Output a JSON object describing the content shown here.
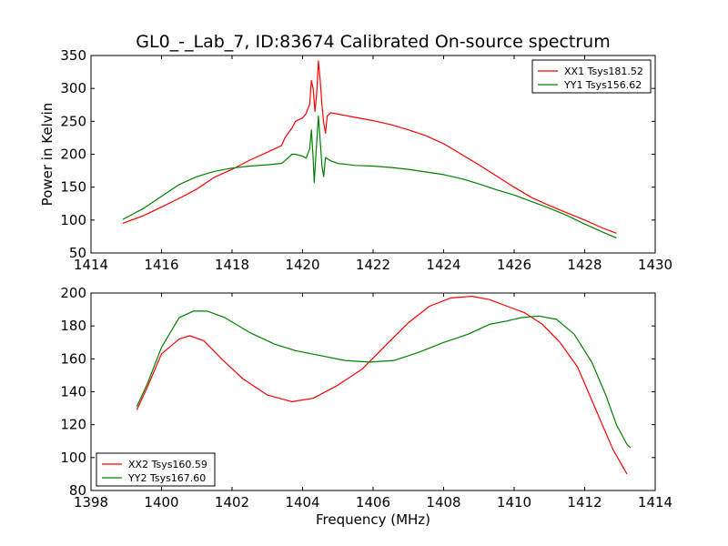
{
  "title": "GL0_-_Lab_7, ID:83674 Calibrated On-source spectrum",
  "chart_data": [
    {
      "type": "line",
      "title": "",
      "xlabel": "",
      "ylabel": "Power in Kelvin",
      "xlim": [
        1414,
        1430
      ],
      "ylim": [
        50,
        350
      ],
      "xticks": [
        1414,
        1416,
        1418,
        1420,
        1422,
        1424,
        1426,
        1428,
        1430
      ],
      "yticks": [
        50,
        100,
        150,
        200,
        250,
        300,
        350
      ],
      "grid": false,
      "legend_position": "top-right",
      "series": [
        {
          "name": "XX1 Tsys181.52",
          "color": "#ff0000",
          "points": [
            [
              1414.9,
              95
            ],
            [
              1415.5,
              107
            ],
            [
              1416,
              120
            ],
            [
              1416.5,
              133
            ],
            [
              1417,
              147
            ],
            [
              1417.5,
              165
            ],
            [
              1418,
              177
            ],
            [
              1418.5,
              191
            ],
            [
              1419,
              203
            ],
            [
              1419.4,
              213
            ],
            [
              1419.5,
              225
            ],
            [
              1419.7,
              240
            ],
            [
              1419.8,
              250
            ],
            [
              1420,
              255
            ],
            [
              1420.1,
              262
            ],
            [
              1420.2,
              276
            ],
            [
              1420.25,
              312
            ],
            [
              1420.3,
              300
            ],
            [
              1420.35,
              265
            ],
            [
              1420.4,
              292
            ],
            [
              1420.45,
              342
            ],
            [
              1420.5,
              312
            ],
            [
              1420.55,
              275
            ],
            [
              1420.6,
              248
            ],
            [
              1420.65,
              232
            ],
            [
              1420.7,
              258
            ],
            [
              1420.8,
              263
            ],
            [
              1421,
              261
            ],
            [
              1421.5,
              256
            ],
            [
              1422,
              251
            ],
            [
              1422.5,
              245
            ],
            [
              1423,
              237
            ],
            [
              1423.5,
              228
            ],
            [
              1424,
              216
            ],
            [
              1424.5,
              200
            ],
            [
              1425,
              184
            ],
            [
              1425.5,
              167
            ],
            [
              1426,
              150
            ],
            [
              1426.5,
              134
            ],
            [
              1427,
              122
            ],
            [
              1427.5,
              111
            ],
            [
              1428,
              100
            ],
            [
              1428.5,
              88
            ],
            [
              1428.9,
              80
            ]
          ]
        },
        {
          "name": "YY1 Tsys156.62",
          "color": "#008000",
          "points": [
            [
              1414.9,
              101
            ],
            [
              1415.5,
              118
            ],
            [
              1416,
              136
            ],
            [
              1416.5,
              154
            ],
            [
              1417,
              166
            ],
            [
              1417.5,
              174
            ],
            [
              1418,
              179
            ],
            [
              1418.5,
              182
            ],
            [
              1419,
              184
            ],
            [
              1419.4,
              186
            ],
            [
              1419.5,
              190
            ],
            [
              1419.7,
              200
            ],
            [
              1419.8,
              200
            ],
            [
              1420,
              197
            ],
            [
              1420.1,
              194
            ],
            [
              1420.2,
              208
            ],
            [
              1420.25,
              237
            ],
            [
              1420.3,
              195
            ],
            [
              1420.33,
              157
            ],
            [
              1420.38,
              200
            ],
            [
              1420.45,
              258
            ],
            [
              1420.5,
              220
            ],
            [
              1420.55,
              182
            ],
            [
              1420.6,
              166
            ],
            [
              1420.65,
              195
            ],
            [
              1420.8,
              190
            ],
            [
              1421,
              186
            ],
            [
              1421.5,
              183
            ],
            [
              1422,
              182
            ],
            [
              1422.5,
              180
            ],
            [
              1423,
              177
            ],
            [
              1423.5,
              173
            ],
            [
              1424,
              169
            ],
            [
              1424.5,
              163
            ],
            [
              1425,
              155
            ],
            [
              1425.5,
              146
            ],
            [
              1426,
              138
            ],
            [
              1426.5,
              128
            ],
            [
              1427,
              118
            ],
            [
              1427.5,
              107
            ],
            [
              1428,
              94
            ],
            [
              1428.5,
              82
            ],
            [
              1428.9,
              73
            ]
          ]
        }
      ]
    },
    {
      "type": "line",
      "title": "",
      "xlabel": "Frequency (MHz)",
      "ylabel": "",
      "xlim": [
        1398,
        1414
      ],
      "ylim": [
        80,
        200
      ],
      "xticks": [
        1398,
        1400,
        1402,
        1404,
        1406,
        1408,
        1410,
        1412,
        1414
      ],
      "yticks": [
        80,
        100,
        120,
        140,
        160,
        180,
        200
      ],
      "grid": false,
      "legend_position": "bottom-left",
      "series": [
        {
          "name": "XX2 Tsys160.59",
          "color": "#ff0000",
          "points": [
            [
              1399.3,
              129
            ],
            [
              1399.6,
              143
            ],
            [
              1400,
              163
            ],
            [
              1400.5,
              172
            ],
            [
              1400.8,
              174
            ],
            [
              1401.2,
              171
            ],
            [
              1401.7,
              160
            ],
            [
              1402.3,
              148
            ],
            [
              1403,
              138
            ],
            [
              1403.7,
              134
            ],
            [
              1404.3,
              136
            ],
            [
              1405,
              144
            ],
            [
              1405.7,
              154
            ],
            [
              1406.3,
              167
            ],
            [
              1407,
              182
            ],
            [
              1407.6,
              192
            ],
            [
              1408.2,
              197
            ],
            [
              1408.8,
              198
            ],
            [
              1409.3,
              196
            ],
            [
              1409.8,
              192
            ],
            [
              1410.3,
              188
            ],
            [
              1410.8,
              181
            ],
            [
              1411.3,
              170
            ],
            [
              1411.8,
              155
            ],
            [
              1412.3,
              130
            ],
            [
              1412.8,
              105
            ],
            [
              1413.2,
              90
            ]
          ]
        },
        {
          "name": "YY2 Tsys167.60",
          "color": "#008000",
          "points": [
            [
              1399.3,
              131
            ],
            [
              1399.6,
              145
            ],
            [
              1400,
              167
            ],
            [
              1400.5,
              185
            ],
            [
              1400.9,
              189
            ],
            [
              1401.3,
              189
            ],
            [
              1401.8,
              185
            ],
            [
              1402.5,
              176
            ],
            [
              1403.2,
              169
            ],
            [
              1403.8,
              165
            ],
            [
              1404.5,
              162
            ],
            [
              1405.2,
              159
            ],
            [
              1405.9,
              158
            ],
            [
              1406.6,
              159
            ],
            [
              1407.3,
              164
            ],
            [
              1408,
              170
            ],
            [
              1408.7,
              175
            ],
            [
              1409.3,
              181
            ],
            [
              1409.8,
              183
            ],
            [
              1410.2,
              185
            ],
            [
              1410.7,
              186
            ],
            [
              1411.2,
              184
            ],
            [
              1411.7,
              175
            ],
            [
              1412.2,
              158
            ],
            [
              1412.6,
              138
            ],
            [
              1412.9,
              120
            ],
            [
              1413.2,
              108
            ],
            [
              1413.3,
              106
            ]
          ]
        }
      ]
    }
  ]
}
